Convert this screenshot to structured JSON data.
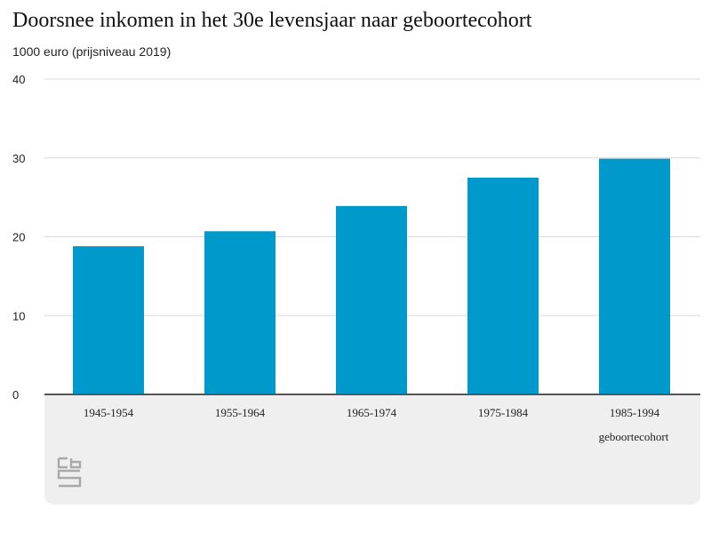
{
  "chart_data": {
    "type": "bar",
    "title": "Doorsnee inkomen in het 30e levensjaar naar geboortecohort",
    "ylabel": "1000 euro (prijsniveau 2019)",
    "xlabel": "geboortecohort",
    "categories": [
      "1945-1954",
      "1955-1964",
      "1965-1974",
      "1975-1984",
      "1985-1994"
    ],
    "values": [
      18.8,
      20.7,
      23.9,
      27.5,
      29.9
    ],
    "ylim": [
      0,
      40
    ],
    "yticks": [
      0,
      10,
      20,
      30,
      40
    ],
    "grid": true,
    "legend": "none",
    "bar_color": "#0099cc"
  },
  "logo": {
    "icon": "cbs-logo-icon",
    "color": "#a9a9a9"
  }
}
